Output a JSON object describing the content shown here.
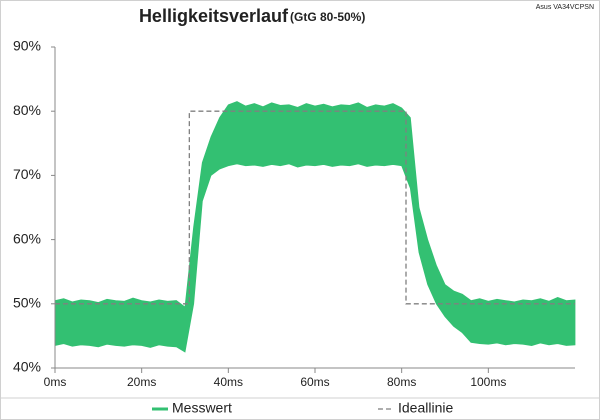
{
  "chart_data": {
    "type": "band-line",
    "title": "Helligkeitsverlauf",
    "subtitle": "(GtG 80-50%)",
    "device": "Asus VA34VCPSN",
    "xlim": [
      0,
      120
    ],
    "xticks": [
      {
        "value": 0,
        "label": "0ms"
      },
      {
        "value": 20,
        "label": "20ms"
      },
      {
        "value": 40,
        "label": "40ms"
      },
      {
        "value": 60,
        "label": "60ms"
      },
      {
        "value": 80,
        "label": "80ms"
      },
      {
        "value": 100,
        "label": "100ms"
      }
    ],
    "ylim": [
      40,
      90
    ],
    "yticks": [
      {
        "value": 40,
        "label": "40%"
      },
      {
        "value": 50,
        "label": "50%"
      },
      {
        "value": 60,
        "label": "60%"
      },
      {
        "value": 70,
        "label": "70%"
      },
      {
        "value": 80,
        "label": "80%"
      },
      {
        "value": 90,
        "label": "90%"
      }
    ],
    "grid": false,
    "legend": "bottom",
    "series": [
      {
        "name": "Messwert",
        "color": "#33c072",
        "x": [
          0,
          2,
          4,
          6,
          8,
          10,
          12,
          14,
          16,
          18,
          20,
          22,
          24,
          26,
          28,
          30,
          32,
          34,
          36,
          38,
          40,
          42,
          44,
          46,
          48,
          50,
          52,
          54,
          56,
          58,
          60,
          62,
          64,
          66,
          68,
          70,
          72,
          74,
          76,
          78,
          80,
          82,
          84,
          86,
          88,
          90,
          92,
          94,
          96,
          98,
          100,
          102,
          104,
          106,
          108,
          110,
          112,
          114,
          116,
          118,
          120
        ],
        "low": [
          43.5,
          43.8,
          43.4,
          43.6,
          43.5,
          43.3,
          43.7,
          43.5,
          43.4,
          43.6,
          43.5,
          43.2,
          43.6,
          43.4,
          43.3,
          42.5,
          50,
          66,
          70,
          71,
          71.5,
          71.8,
          71.5,
          71.6,
          71.4,
          71.7,
          71.5,
          71.8,
          71.3,
          71.6,
          71.5,
          71.7,
          71.4,
          71.6,
          71.5,
          71.8,
          71.4,
          71.6,
          71.5,
          71.7,
          71.5,
          68,
          58,
          53,
          50,
          48,
          46.5,
          45.5,
          44,
          43.8,
          43.7,
          43.9,
          43.6,
          43.8,
          43.7,
          43.5,
          43.9,
          43.6,
          43.8,
          43.5,
          43.6
        ],
        "high": [
          50.5,
          50.8,
          50.3,
          50.6,
          50.5,
          50.2,
          50.7,
          50.5,
          50.4,
          50.9,
          50.5,
          50.3,
          50.6,
          50.4,
          50.5,
          49.5,
          62,
          72,
          76,
          79,
          81,
          81.5,
          80.8,
          81.2,
          80.7,
          81.3,
          80.9,
          81,
          80.6,
          81.2,
          80.8,
          81.1,
          80.7,
          81,
          80.9,
          81.3,
          80.6,
          81,
          80.8,
          81.2,
          80.5,
          79,
          65,
          60,
          56,
          53,
          52,
          51.5,
          50.5,
          50.8,
          50.4,
          50.7,
          50.5,
          50.3,
          50.6,
          50.5,
          50.8,
          50.4,
          51,
          50.5,
          50.6
        ]
      },
      {
        "name": "Ideallinie",
        "color": "#808080",
        "x": [
          0,
          31,
          31,
          81,
          81,
          120
        ],
        "values": [
          50,
          50,
          80,
          80,
          50,
          50
        ]
      }
    ]
  }
}
